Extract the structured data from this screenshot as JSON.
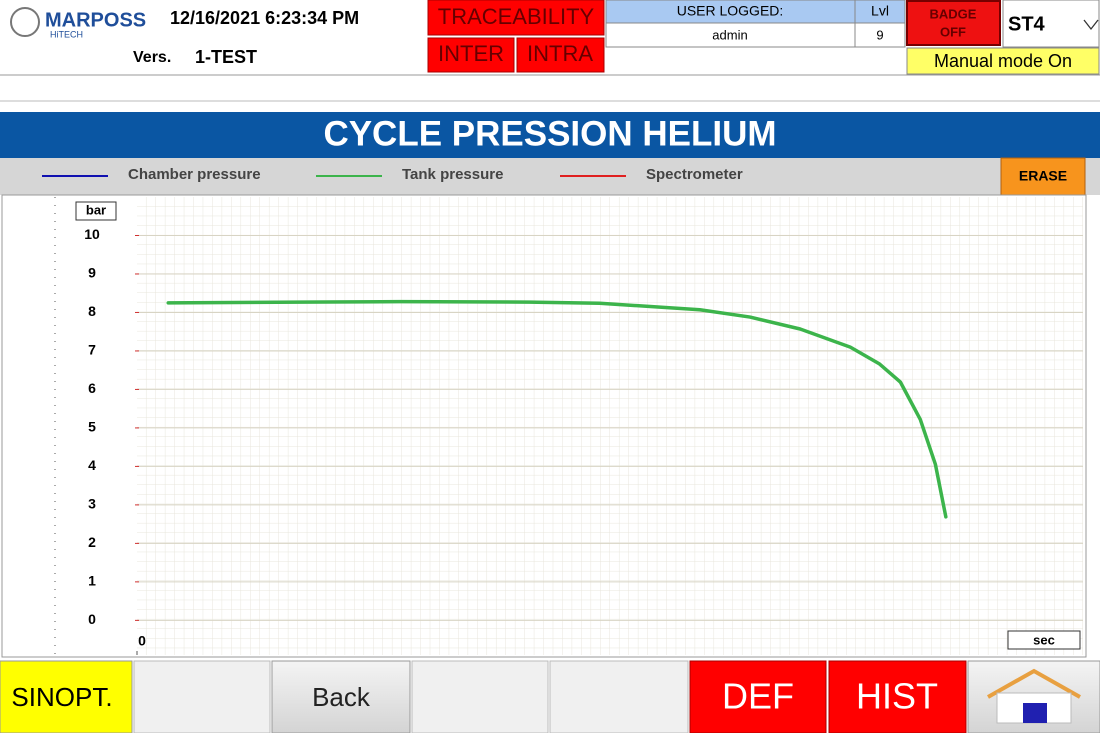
{
  "header": {
    "brand": "MARPOSS",
    "subbrand": "HiTECH",
    "datetime": "12/16/2021 6:23:34 PM",
    "version_label": "Vers.",
    "version": "1-TEST",
    "traceability": "TRACEABILITY",
    "inter": "INTER",
    "intra": "INTRA",
    "user_logged_label": "USER LOGGED:",
    "user": "admin",
    "level_label": "Lvl",
    "level": "9",
    "badge": [
      "BADGE",
      "OFF"
    ],
    "station": "ST4",
    "mode": "Manual mode On"
  },
  "page_title": "CYCLE PRESSION HELIUM",
  "erase": "ERASE",
  "chart_data": {
    "type": "line",
    "ylabel": "bar",
    "xlabel": "sec",
    "x": [
      3.3,
      17.2,
      27.8,
      41.5,
      48.9,
      59.5,
      64.8,
      70.1,
      75.4,
      78.5,
      80.7,
      82.8,
      84.4,
      85.5
    ],
    "series": [
      {
        "name": "Chamber pressure",
        "color": "#1010b0",
        "values": [
          null,
          null,
          null,
          null,
          null,
          null,
          null,
          null,
          null,
          null,
          null,
          null,
          null,
          null
        ]
      },
      {
        "name": "Tank pressure",
        "color": "#3cb44b",
        "values": [
          8.25,
          8.27,
          8.28,
          8.27,
          8.24,
          8.07,
          7.88,
          7.57,
          7.1,
          6.66,
          6.19,
          5.22,
          4.05,
          2.69
        ]
      },
      {
        "name": "Spectrometer",
        "color": "#e02020",
        "values": [
          null,
          null,
          null,
          null,
          null,
          null,
          null,
          null,
          null,
          null,
          null,
          null,
          null,
          null
        ]
      }
    ],
    "xlim": [
      0,
      100
    ],
    "xticks": [
      0
    ],
    "ylim": [
      -0.9,
      11
    ],
    "yticks": [
      0,
      1,
      2,
      3,
      4,
      5,
      6,
      7,
      8,
      9,
      10
    ],
    "grid": true
  },
  "footer": {
    "sinopt": "SINOPT.",
    "back": "Back",
    "def": "DEF",
    "hist": "HIST"
  }
}
